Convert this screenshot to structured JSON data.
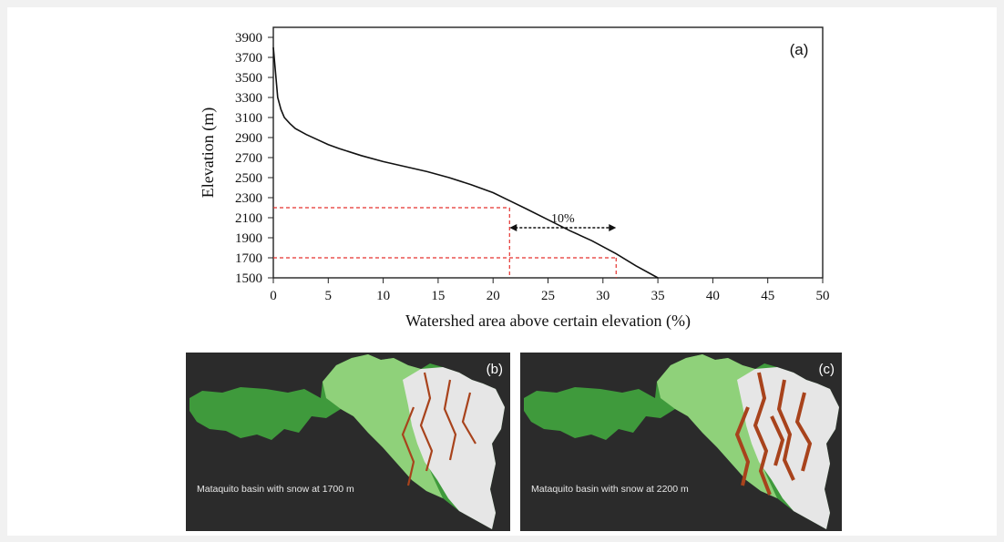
{
  "chart_data": [
    {
      "type": "line",
      "panel_label": "(a)",
      "xlabel": "Watershed area above certain elevation (%)",
      "ylabel": "Elevation (m)",
      "xlim": [
        0,
        50
      ],
      "ylim": [
        1500,
        4000
      ],
      "x_ticks": [
        "0",
        "5",
        "10",
        "15",
        "20",
        "25",
        "30",
        "35",
        "40",
        "45",
        "50"
      ],
      "y_ticks": [
        "1500",
        "1700",
        "1900",
        "2100",
        "2300",
        "2500",
        "2700",
        "2900",
        "3100",
        "3300",
        "3500",
        "3700",
        "3900"
      ],
      "grid": false,
      "series": [
        {
          "x": [
            0,
            0.2,
            0.4,
            0.7,
            1.0,
            1.5,
            2.0,
            3.0,
            4.0,
            5.0,
            6.0,
            8.0,
            10.0,
            12.0,
            14.0,
            16.0,
            18.0,
            20.0,
            21.5,
            23.0,
            25.0,
            27.0,
            29.0,
            31.2,
            33.0,
            35.0
          ],
          "y": [
            3800,
            3550,
            3300,
            3180,
            3100,
            3040,
            2990,
            2930,
            2880,
            2830,
            2790,
            2720,
            2660,
            2610,
            2560,
            2500,
            2430,
            2350,
            2270,
            2190,
            2080,
            1970,
            1870,
            1740,
            1620,
            1500
          ]
        }
      ],
      "reference_lines": {
        "horizontal_y": [
          2200,
          1700
        ],
        "vertical_x": [
          21.5,
          31.2
        ]
      },
      "annotation": {
        "text": "10%",
        "x_from": 21.5,
        "x_to": 31.2,
        "y": 2000
      }
    }
  ],
  "maps": [
    {
      "tag": "(b)",
      "caption": "Mataquito basin with snow at 1700 m",
      "snow_elevation_m": 1700
    },
    {
      "tag": "(c)",
      "caption": "Mataquito basin with snow at 2200 m",
      "snow_elevation_m": 2200
    }
  ],
  "colors": {
    "lowland": "#3f9a3c",
    "mid": "#8fd17a",
    "snow": "#e6e6e6",
    "snow_edge": "#a8431c",
    "reference": "#e5322d"
  }
}
